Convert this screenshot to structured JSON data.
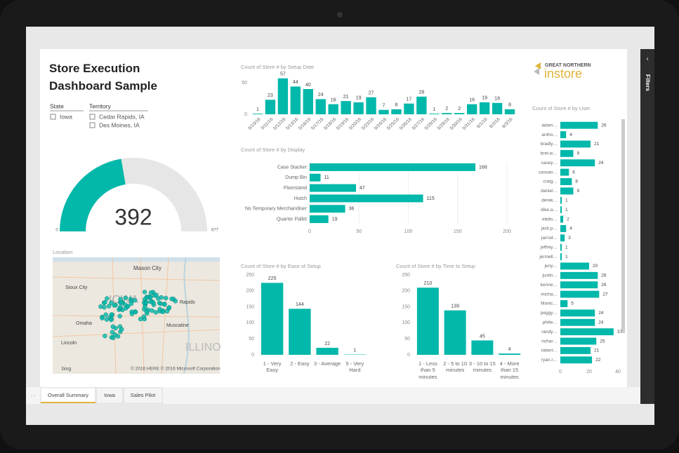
{
  "report_title": "Store Execution Dashboard Sample",
  "slicers": [
    {
      "title": "State",
      "items": [
        "Iowa"
      ]
    },
    {
      "title": "Territory",
      "items": [
        "Cedar Rapids, IA",
        "Des Moines, IA"
      ]
    }
  ],
  "logo": {
    "top": "GREAT NORTHERN",
    "bottom": "instore"
  },
  "map": {
    "title": "Location",
    "labels": [
      "Mason City",
      "Sioux City",
      "IOWA",
      "Omaha",
      "Lincoln",
      "Muscatine",
      "Rapids",
      "ILLINO"
    ],
    "brand": "bing",
    "credit": "© 2016 HERE   © 2016 Microsoft Corporation"
  },
  "tabs": [
    "Overall Summary",
    "Iowa",
    "Sales Pilot"
  ],
  "filters_pane": "Filters",
  "chart_data": [
    {
      "type": "gauge",
      "value": 392,
      "min": 0,
      "max": 877,
      "color": "#01b8aa"
    },
    {
      "type": "bar",
      "title": "Count of Store # by Setup Date",
      "categories": [
        "5/10/16",
        "5/11/16",
        "5/12/16",
        "5/13/16",
        "5/16/16",
        "5/17/16",
        "5/18/16",
        "5/19/16",
        "5/20/16",
        "5/23/16",
        "5/24/16",
        "5/25/16",
        "5/26/16",
        "5/27/16",
        "5/28/16",
        "5/29/16",
        "5/30/16",
        "5/31/16",
        "6/1/16",
        "6/2/16",
        "6/3/16"
      ],
      "values": [
        1,
        23,
        57,
        44,
        40,
        24,
        16,
        21,
        19,
        27,
        7,
        8,
        17,
        28,
        1,
        2,
        2,
        16,
        19,
        18,
        8
      ],
      "color": "#01b8aa",
      "ylim": [
        0,
        60
      ],
      "yticks": [
        0,
        50
      ],
      "grid": false
    },
    {
      "type": "hbar",
      "title": "Count of Store # by Display",
      "categories": [
        "Case Stacker",
        "Dump Bin",
        "Floorstand",
        "Hutch",
        "No Temporary Merchandiser",
        "Quarter Pallet"
      ],
      "values": [
        168,
        11,
        47,
        115,
        36,
        19
      ],
      "color": "#01b8aa",
      "xlim": [
        0,
        200
      ],
      "xticks": [
        0,
        50,
        100,
        150,
        200
      ],
      "grid": true
    },
    {
      "type": "bar",
      "title": "Count of Store # by Ease of Setup",
      "categories": [
        "1 - Very Easy",
        "2 - Easy",
        "3 - Average",
        "5 - Very Hard"
      ],
      "values": [
        225,
        144,
        22,
        1
      ],
      "color": "#01b8aa",
      "ylim": [
        0,
        250
      ],
      "yticks": [
        0,
        50,
        100,
        150,
        200,
        250
      ],
      "grid": false
    },
    {
      "type": "bar",
      "title": "Count of Store # by Time to Setup",
      "categories": [
        "1 - Less than 5 minutes",
        "2 - 5 to 10 minutes",
        "3 - 10 to 15 minutes",
        "4 - More than 15 minutes"
      ],
      "values": [
        210,
        139,
        45,
        4
      ],
      "color": "#01b8aa",
      "ylim": [
        0,
        250
      ],
      "yticks": [
        0,
        50,
        100,
        150,
        200,
        250
      ],
      "grid": false
    },
    {
      "type": "hbar",
      "title": "Count of Store # by User",
      "categories": [
        "adam…",
        "antho…",
        "bradly…",
        "bret.w…",
        "casey…",
        "cassan…",
        "craig…",
        "daniel…",
        "derek…",
        "dike.a…",
        "ebdis…",
        "jack.p…",
        "jarrod…",
        "jeffrey…",
        "jermell…",
        "jeny…",
        "justin…",
        "kenne…",
        "micha…",
        "Monic…",
        "peggy…",
        "philw…",
        "randy…",
        "richar…",
        "robert…",
        "ryan.r…"
      ],
      "values": [
        26,
        4,
        21,
        9,
        24,
        6,
        8,
        9,
        1,
        1,
        2,
        4,
        3,
        1,
        1,
        20,
        26,
        26,
        27,
        5,
        24,
        24,
        37,
        25,
        21,
        22
      ],
      "color": "#01b8aa",
      "xlim": [
        0,
        40
      ],
      "xticks": [
        0,
        20,
        40
      ],
      "grid": false
    }
  ]
}
